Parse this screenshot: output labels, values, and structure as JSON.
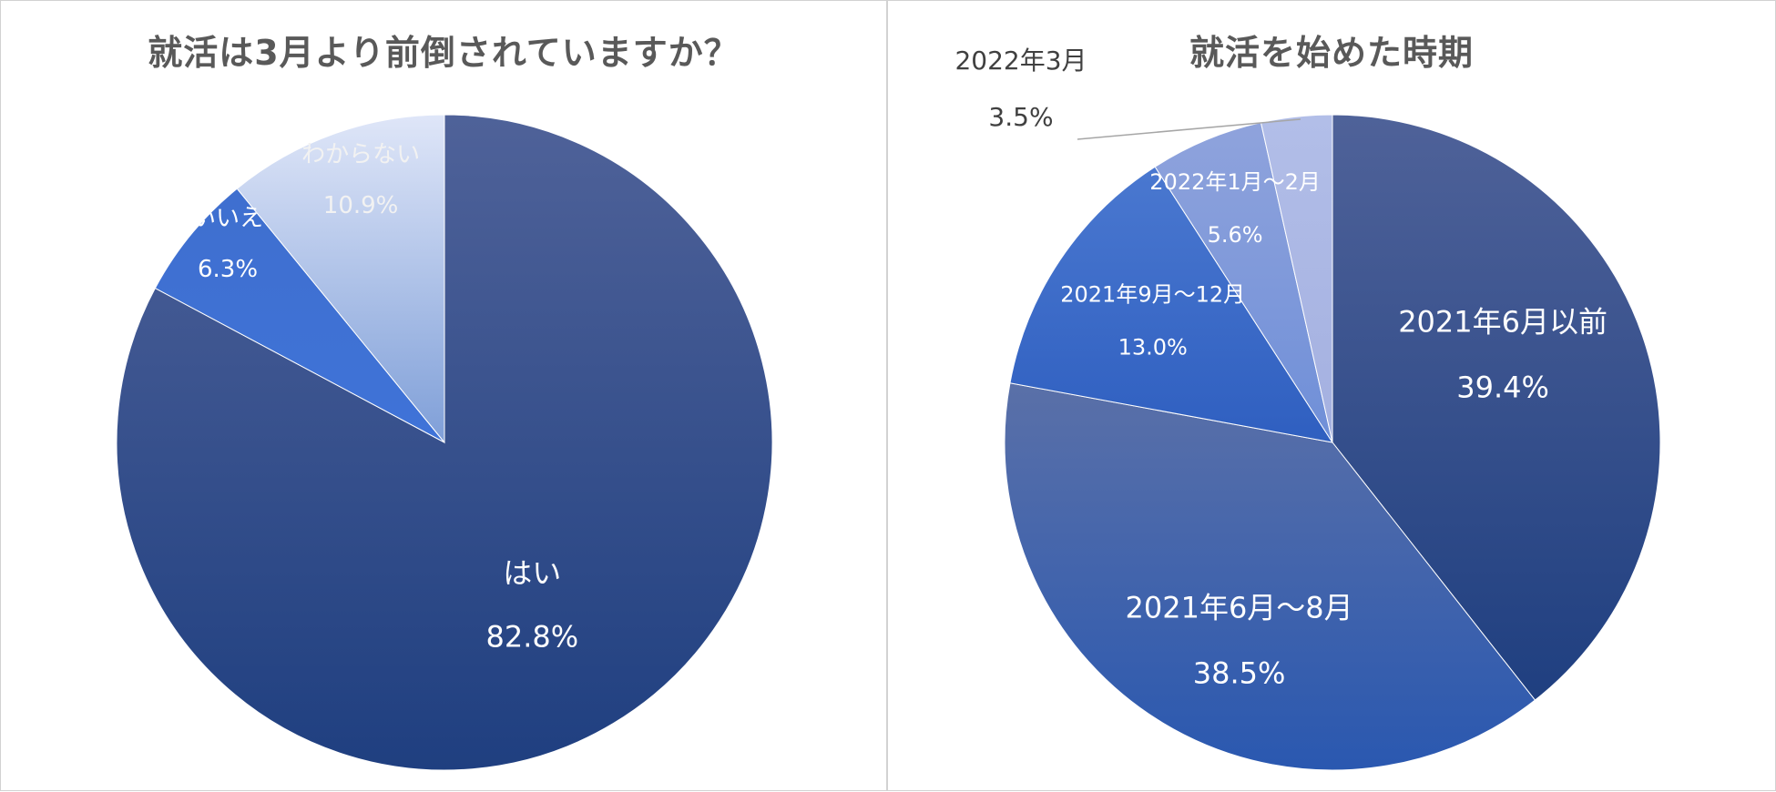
{
  "chart_data": [
    {
      "type": "pie",
      "title": "就活は3月より前倒されていますか？",
      "categories": [
        "はい",
        "いいえ",
        "わからない"
      ],
      "values": [
        82.8,
        6.3,
        10.9
      ],
      "value_labels": [
        "82.8%",
        "6.3%",
        "10.9%"
      ],
      "label_colors": [
        "#ffffff",
        "#ffffff",
        "#f2f2f2"
      ],
      "start_angle_deg": 0,
      "direction": "clockwise",
      "colors": [
        {
          "top": "#4f6299",
          "bottom": "#1f3f80"
        },
        {
          "top": "#3f6fcf",
          "bottom": "#3f73d8"
        },
        {
          "top": "#dfe6f8",
          "bottom": "#7f9fd8"
        }
      ]
    },
    {
      "type": "pie",
      "title": "就活を始めた時期",
      "categories": [
        "2021年6月以前",
        "2021年6月～8月",
        "2021年9月～12月",
        "2022年1月～2月",
        "2022年3月"
      ],
      "values": [
        39.4,
        38.5,
        13.0,
        5.6,
        3.5
      ],
      "value_labels": [
        "39.4%",
        "38.5%",
        "13.0%",
        "5.6%",
        "3.5%"
      ],
      "label_colors": [
        "#ffffff",
        "#ffffff",
        "#ffffff",
        "#ffffff",
        "#404040"
      ],
      "start_angle_deg": 0,
      "direction": "clockwise",
      "colors": [
        {
          "top": "#4f6299",
          "bottom": "#1f3f80"
        },
        {
          "top": "#5a70a8",
          "bottom": "#2a58b0"
        },
        {
          "top": "#4a78d0",
          "bottom": "#2f5fc0"
        },
        {
          "top": "#8fa3dc",
          "bottom": "#6f8fd8"
        },
        {
          "top": "#b2bee8",
          "bottom": "#a4b0e0"
        }
      ]
    }
  ]
}
